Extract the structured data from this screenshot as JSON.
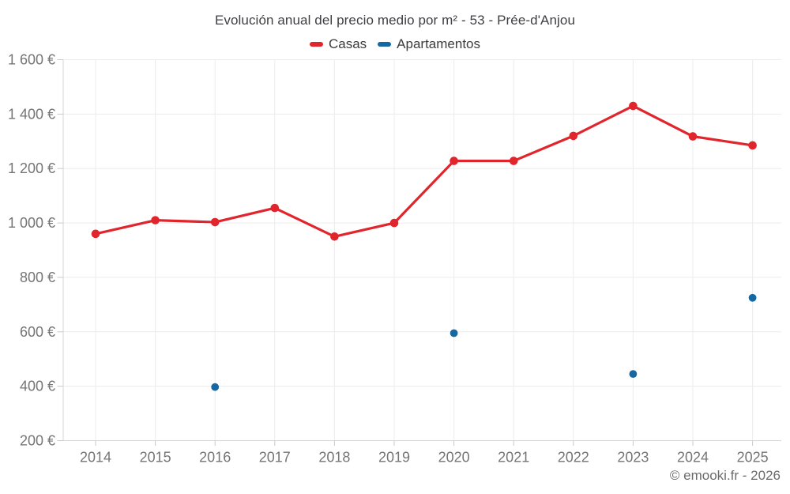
{
  "chart_data": {
    "type": "line",
    "title": "Evolución anual del precio medio por m² - 53 - Prée-d'Anjou",
    "categories": [
      2014,
      2015,
      2016,
      2017,
      2018,
      2019,
      2020,
      2021,
      2022,
      2023,
      2024,
      2025
    ],
    "xtick_labels": [
      "2014",
      "2015",
      "2016",
      "2017",
      "2018",
      "2019",
      "2020",
      "2021",
      "2022",
      "2023",
      "2024",
      "2025"
    ],
    "series": [
      {
        "name": "Casas",
        "type": "line",
        "color": "#e0262c",
        "values": [
          960,
          1010,
          1003,
          1055,
          950,
          1000,
          1228,
          1228,
          1320,
          1430,
          1318,
          1285
        ]
      },
      {
        "name": "Apartamentos",
        "type": "scatter",
        "color": "#1668a2",
        "points": [
          {
            "x": 2016,
            "y": 397
          },
          {
            "x": 2020,
            "y": 595
          },
          {
            "x": 2023,
            "y": 445
          },
          {
            "x": 2025,
            "y": 725
          }
        ]
      }
    ],
    "ylim": [
      200,
      1600
    ],
    "ytick_step": 200,
    "ytick_labels": [
      "200 €",
      "400 €",
      "600 €",
      "800 €",
      "1 000 €",
      "1 200 €",
      "1 400 €",
      "1 600 €"
    ],
    "xlabel": "",
    "ylabel": "",
    "grid": true,
    "legend_position": "top"
  },
  "footer": {
    "copyright": "© emooki.fr - 2026"
  },
  "theme": {
    "grid_color": "#ececec",
    "axis_color": "#d4d4d4",
    "tick_color": "#c9c9c9",
    "axis_label_color": "#757575",
    "title_color": "#3f4043",
    "footer_color": "#6b6b6b"
  }
}
